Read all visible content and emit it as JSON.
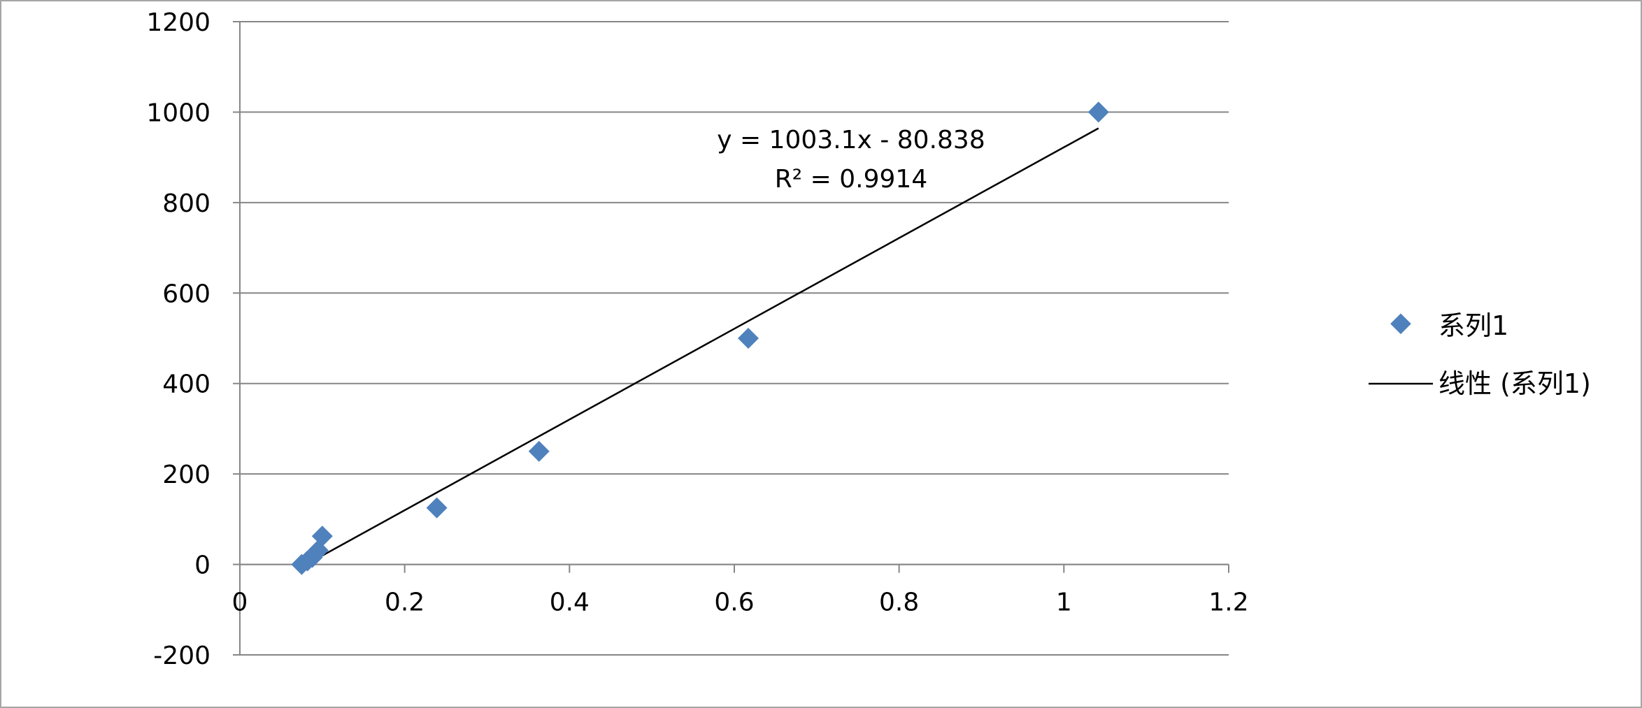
{
  "chart_data": {
    "type": "scatter",
    "title": "",
    "xlabel": "",
    "ylabel": "",
    "xlim": [
      0,
      1.2
    ],
    "ylim": [
      -200,
      1200
    ],
    "x_ticks": [
      "0",
      "0.2",
      "0.4",
      "0.6",
      "0.8",
      "1",
      "1.2"
    ],
    "y_ticks": [
      "-200",
      "0",
      "200",
      "400",
      "600",
      "800",
      "1000",
      "1200"
    ],
    "grid": "horizontal",
    "legend_position": "right",
    "series": [
      {
        "name": "系列1",
        "color": "#4f81bd",
        "marker": "diamond",
        "points": [
          {
            "x": 0.075,
            "y": 0
          },
          {
            "x": 0.082,
            "y": 7.8
          },
          {
            "x": 0.088,
            "y": 15.6
          },
          {
            "x": 0.095,
            "y": 31.25
          },
          {
            "x": 0.1,
            "y": 62.5
          },
          {
            "x": 0.239,
            "y": 125
          },
          {
            "x": 0.363,
            "y": 250
          },
          {
            "x": 0.617,
            "y": 500
          },
          {
            "x": 1.042,
            "y": 1000
          }
        ]
      }
    ],
    "trendline": {
      "name": "线性 (系列1)",
      "type": "linear",
      "slope": 1003.1,
      "intercept": -80.838,
      "x_range": [
        0.075,
        1.042
      ],
      "color": "#000000",
      "equation": "y = 1003.1x - 80.838",
      "r_squared": "R² = 0.9914"
    }
  }
}
